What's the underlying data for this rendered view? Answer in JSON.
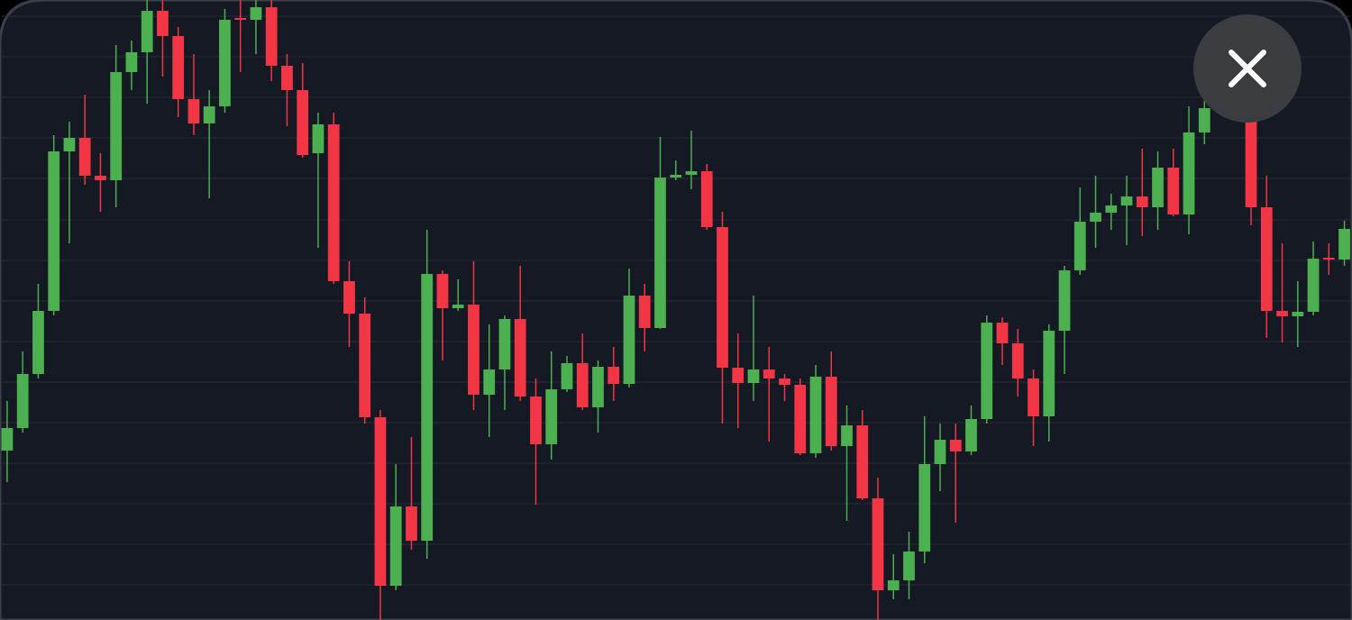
{
  "chart_data": {
    "type": "candlestick",
    "x": [
      0,
      1,
      2,
      3,
      4,
      5,
      6,
      7,
      8,
      9,
      10,
      11,
      12,
      13,
      14,
      15,
      16,
      17,
      18,
      19,
      20,
      21,
      22,
      23,
      24,
      25,
      26,
      27,
      28,
      29,
      30,
      31,
      32,
      33,
      34,
      35,
      36,
      37,
      38,
      39,
      40,
      41,
      42,
      43,
      44,
      45,
      46,
      47,
      48,
      49,
      50,
      51,
      52,
      53,
      54,
      55,
      56,
      57,
      58,
      59,
      60,
      61,
      62,
      63,
      64,
      65,
      66,
      67,
      68,
      69,
      70,
      71,
      72,
      73,
      74,
      75,
      76,
      77,
      80,
      81,
      82,
      83,
      84,
      85,
      86
    ],
    "open": [
      188,
      213,
      273,
      343,
      520,
      535,
      493,
      488,
      608,
      630,
      676,
      648,
      578,
      551,
      570,
      668,
      666,
      680,
      615,
      588,
      518,
      550,
      376,
      340,
      225,
      38,
      126,
      88,
      384,
      346,
      350,
      250,
      278,
      334,
      248,
      195,
      256,
      285,
      236,
      281,
      262,
      360,
      324,
      491,
      494,
      498,
      436,
      280,
      263,
      278,
      268,
      261,
      185,
      270,
      193,
      216,
      135,
      33,
      44,
      76,
      173,
      200,
      187,
      223,
      330,
      307,
      268,
      226,
      321,
      388,
      442,
      452,
      460,
      470,
      458,
      502,
      450,
      541,
      553,
      458,
      343,
      337,
      342,
      402,
      400
    ],
    "high": [
      243,
      298,
      373,
      538,
      553,
      583,
      518,
      638,
      643,
      688,
      688,
      658,
      628,
      588,
      678,
      688,
      688,
      688,
      628,
      618,
      563,
      563,
      398,
      358,
      233,
      173,
      203,
      433,
      388,
      378,
      398,
      328,
      338,
      393,
      268,
      298,
      293,
      318,
      288,
      303,
      390,
      373,
      536,
      510,
      543,
      506,
      453,
      318,
      360,
      303,
      273,
      268,
      283,
      298,
      238,
      233,
      158,
      73,
      98,
      226,
      218,
      218,
      238,
      338,
      336,
      323,
      278,
      328,
      393,
      480,
      493,
      473,
      493,
      523,
      520,
      523,
      570,
      578,
      568,
      493,
      418,
      376,
      420,
      418,
      443
    ],
    "low": [
      153,
      208,
      268,
      338,
      418,
      483,
      453,
      458,
      588,
      573,
      603,
      558,
      538,
      468,
      563,
      608,
      628,
      598,
      548,
      513,
      413,
      373,
      303,
      218,
      0,
      33,
      78,
      68,
      288,
      343,
      233,
      203,
      233,
      243,
      128,
      178,
      253,
      233,
      208,
      243,
      258,
      298,
      323,
      488,
      478,
      433,
      218,
      213,
      243,
      198,
      243,
      183,
      180,
      188,
      110,
      133,
      0,
      23,
      23,
      63,
      143,
      108,
      183,
      218,
      283,
      248,
      193,
      198,
      273,
      383,
      413,
      433,
      416,
      426,
      433,
      448,
      428,
      528,
      438,
      313,
      308,
      303,
      338,
      383,
      393
    ],
    "close": [
      213,
      273,
      343,
      520,
      535,
      493,
      488,
      608,
      630,
      676,
      648,
      578,
      551,
      570,
      666,
      666,
      680,
      615,
      588,
      516,
      550,
      376,
      340,
      225,
      38,
      126,
      88,
      384,
      346,
      350,
      250,
      278,
      334,
      248,
      195,
      256,
      285,
      236,
      281,
      262,
      360,
      324,
      491,
      494,
      498,
      436,
      280,
      263,
      278,
      268,
      261,
      185,
      270,
      193,
      216,
      135,
      33,
      44,
      76,
      173,
      200,
      187,
      223,
      330,
      307,
      268,
      226,
      321,
      388,
      442,
      452,
      460,
      470,
      458,
      502,
      450,
      541,
      568,
      458,
      343,
      337,
      342,
      401,
      400,
      434
    ],
    "up_color": "#4caf50",
    "down_color": "#f23645",
    "xlim": [
      -0.46,
      86.49
    ],
    "ylim": [
      0,
      688
    ],
    "yticks": [
      39,
      84,
      129,
      174,
      219,
      264,
      309,
      354,
      399,
      444,
      490,
      535,
      580,
      625,
      670
    ],
    "grid": true
  }
}
